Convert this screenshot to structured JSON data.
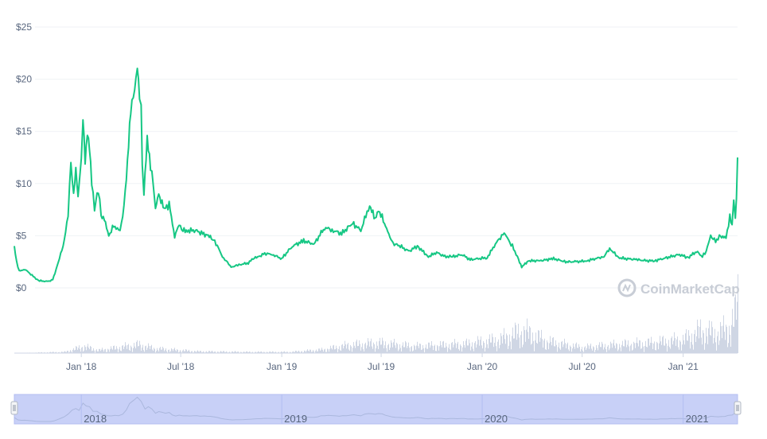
{
  "colors": {
    "line": "#16c784",
    "grid": "#eff2f5",
    "axis_text": "#58667e",
    "volume": "#cfd6e4",
    "navigator_fill": "#c8d0f7",
    "navigator_border": "#b3bef2",
    "navigator_line": "#aab7dd",
    "watermark": "#c8cdd6"
  },
  "watermark": {
    "text": "CoinMarketCap",
    "icon": "coinmarketcap-logo-icon"
  },
  "chart_data": {
    "type": "line",
    "title": "",
    "xlabel": "",
    "ylabel": "",
    "y_tick_labels": [
      "$0",
      "$5",
      "$10",
      "$15",
      "$20",
      "$25"
    ],
    "y_tick_values": [
      0,
      5,
      10,
      15,
      20,
      25
    ],
    "ylim": [
      0,
      25
    ],
    "xlim": [
      "2017-09-01",
      "2021-04-10"
    ],
    "x_ticks": [
      {
        "label": "Jan '18",
        "date": "2018-01-01"
      },
      {
        "label": "Jul '18",
        "date": "2018-07-01"
      },
      {
        "label": "Jan '19",
        "date": "2019-01-01"
      },
      {
        "label": "Jul '19",
        "date": "2019-07-01"
      },
      {
        "label": "Jan '20",
        "date": "2020-01-01"
      },
      {
        "label": "Jul '20",
        "date": "2020-07-01"
      },
      {
        "label": "Jan '21",
        "date": "2021-01-01"
      }
    ],
    "grid": true,
    "legend": "none",
    "series": [
      {
        "x": [
          "2017-09-01",
          "2017-09-05",
          "2017-09-10",
          "2017-09-20",
          "2017-10-01",
          "2017-10-15",
          "2017-11-01",
          "2017-11-10",
          "2017-11-20",
          "2017-12-01",
          "2017-12-08",
          "2017-12-13",
          "2017-12-18",
          "2017-12-22",
          "2017-12-26",
          "2018-01-01",
          "2018-01-04",
          "2018-01-08",
          "2018-01-12",
          "2018-01-16",
          "2018-01-20",
          "2018-01-25",
          "2018-02-01",
          "2018-02-06",
          "2018-02-12",
          "2018-02-20",
          "2018-03-01",
          "2018-03-10",
          "2018-03-15",
          "2018-03-22",
          "2018-04-01",
          "2018-04-08",
          "2018-04-13",
          "2018-04-17",
          "2018-04-20",
          "2018-04-22",
          "2018-04-25",
          "2018-05-01",
          "2018-05-07",
          "2018-05-12",
          "2018-05-16",
          "2018-05-22",
          "2018-06-01",
          "2018-06-10",
          "2018-06-20",
          "2018-06-28",
          "2018-07-05",
          "2018-07-15",
          "2018-07-28",
          "2018-08-10",
          "2018-08-20",
          "2018-09-01",
          "2018-09-15",
          "2018-10-01",
          "2018-10-15",
          "2018-11-01",
          "2018-11-10",
          "2018-11-20",
          "2018-12-01",
          "2018-12-15",
          "2019-01-01",
          "2019-01-20",
          "2019-02-10",
          "2019-03-01",
          "2019-03-20",
          "2019-04-05",
          "2019-04-20",
          "2019-05-10",
          "2019-05-25",
          "2019-06-10",
          "2019-06-20",
          "2019-06-26",
          "2019-07-05",
          "2019-07-15",
          "2019-07-25",
          "2019-08-05",
          "2019-08-20",
          "2019-09-05",
          "2019-09-25",
          "2019-10-10",
          "2019-10-25",
          "2019-11-10",
          "2019-11-25",
          "2019-12-10",
          "2019-12-25",
          "2020-01-10",
          "2020-01-25",
          "2020-02-10",
          "2020-02-18",
          "2020-02-25",
          "2020-03-05",
          "2020-03-13",
          "2020-03-25",
          "2020-04-15",
          "2020-05-10",
          "2020-06-01",
          "2020-06-20",
          "2020-07-10",
          "2020-07-25",
          "2020-08-10",
          "2020-08-20",
          "2020-09-05",
          "2020-09-20",
          "2020-10-10",
          "2020-10-25",
          "2020-11-10",
          "2020-11-25",
          "2020-12-10",
          "2020-12-25",
          "2021-01-10",
          "2021-01-25",
          "2021-02-05",
          "2021-02-12",
          "2021-02-20",
          "2021-03-01",
          "2021-03-10",
          "2021-03-20",
          "2021-03-27",
          "2021-03-31",
          "2021-04-03",
          "2021-04-06",
          "2021-04-08",
          "2021-04-10"
        ],
        "values": [
          3.9,
          2.5,
          1.6,
          1.8,
          1.3,
          0.7,
          0.6,
          0.8,
          2.4,
          4.5,
          7.0,
          12.0,
          9.0,
          11.5,
          8.5,
          12.5,
          16.2,
          12.0,
          15.0,
          13.5,
          10.0,
          7.5,
          9.5,
          7.0,
          6.5,
          5.0,
          6.0,
          5.5,
          6.0,
          9.0,
          17.0,
          19.0,
          21.4,
          18.5,
          17.5,
          12.0,
          9.0,
          14.5,
          11.5,
          10.0,
          7.5,
          9.0,
          7.5,
          8.0,
          5.0,
          6.0,
          5.5,
          5.5,
          5.5,
          5.2,
          5.0,
          4.5,
          3.0,
          2.0,
          2.2,
          2.4,
          2.8,
          3.0,
          3.3,
          3.2,
          2.8,
          4.0,
          4.5,
          4.2,
          5.8,
          5.5,
          5.2,
          6.2,
          5.5,
          8.0,
          6.5,
          7.5,
          6.5,
          5.0,
          4.2,
          4.0,
          3.5,
          4.0,
          3.0,
          3.4,
          3.0,
          3.0,
          3.2,
          2.7,
          2.8,
          2.9,
          4.2,
          5.3,
          4.5,
          4.0,
          3.0,
          2.0,
          2.6,
          2.6,
          2.8,
          2.5,
          2.5,
          2.6,
          2.8,
          3.0,
          3.8,
          2.9,
          2.8,
          2.7,
          2.6,
          2.6,
          2.8,
          3.0,
          3.2,
          2.9,
          3.5,
          3.0,
          3.5,
          5.0,
          4.5,
          5.0,
          4.7,
          6.8,
          5.8,
          8.3,
          7.0,
          8.5,
          12.5
        ]
      }
    ],
    "volume": {
      "note": "relative volume, 0-1",
      "x": [
        "2017-09-01",
        "2017-12-01",
        "2018-01-05",
        "2018-02-01",
        "2018-04-15",
        "2018-05-15",
        "2018-08-01",
        "2018-11-01",
        "2019-01-15",
        "2019-03-15",
        "2019-05-01",
        "2019-06-25",
        "2019-09-01",
        "2019-12-01",
        "2020-02-01",
        "2020-03-15",
        "2020-05-01",
        "2020-07-01",
        "2020-09-01",
        "2020-11-01",
        "2021-01-01",
        "2021-02-01",
        "2021-03-01",
        "2021-03-25",
        "2021-04-05",
        "2021-04-08"
      ],
      "values": [
        0.0,
        0.02,
        0.12,
        0.05,
        0.15,
        0.08,
        0.03,
        0.02,
        0.02,
        0.06,
        0.14,
        0.18,
        0.12,
        0.16,
        0.24,
        0.4,
        0.2,
        0.1,
        0.15,
        0.18,
        0.24,
        0.4,
        0.35,
        0.45,
        0.65,
        1.0
      ]
    },
    "navigator": {
      "year_labels": [
        "2018",
        "2019",
        "2020",
        "2021"
      ],
      "year_dates": [
        "2018-01-01",
        "2019-01-01",
        "2020-01-01",
        "2021-01-01"
      ]
    }
  }
}
